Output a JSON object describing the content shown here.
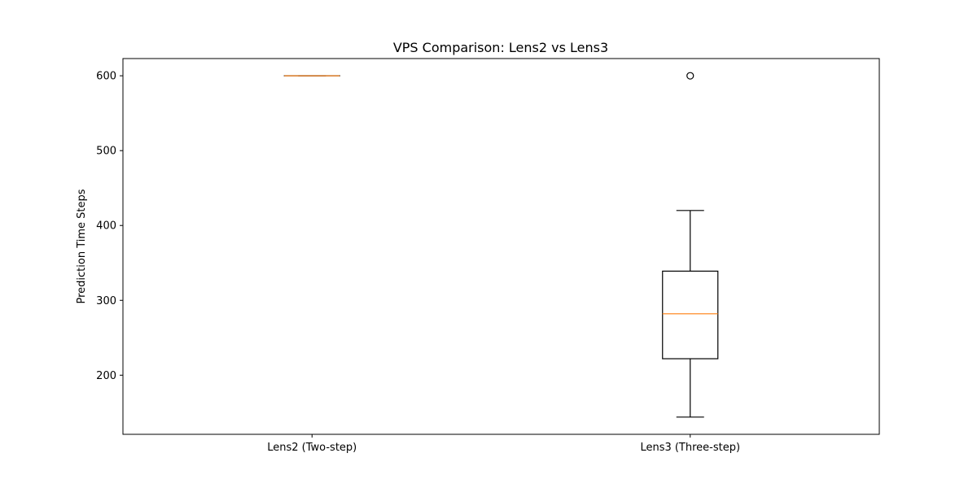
{
  "chart_data": {
    "type": "boxplot",
    "title": "VPS Comparison: Lens2 vs Lens3",
    "xlabel": "",
    "ylabel": "Prediction Time Steps",
    "ylim": [
      121,
      623
    ],
    "yticks": [
      200,
      300,
      400,
      500,
      600
    ],
    "grid": false,
    "categories": [
      "Lens2 (Two-step)",
      "Lens3 (Three-step)"
    ],
    "boxes": [
      {
        "category": "Lens2 (Two-step)",
        "whisker_low": 600,
        "q1": 600,
        "median": 600,
        "q3": 600,
        "whisker_high": 600,
        "outliers": []
      },
      {
        "category": "Lens3 (Three-step)",
        "whisker_low": 144,
        "q1": 222,
        "median": 282,
        "q3": 339,
        "whisker_high": 420,
        "outliers": [
          600
        ]
      }
    ]
  },
  "colors": {
    "box": "#000000",
    "median": "#ff7f0e",
    "outlier": "#000000"
  }
}
